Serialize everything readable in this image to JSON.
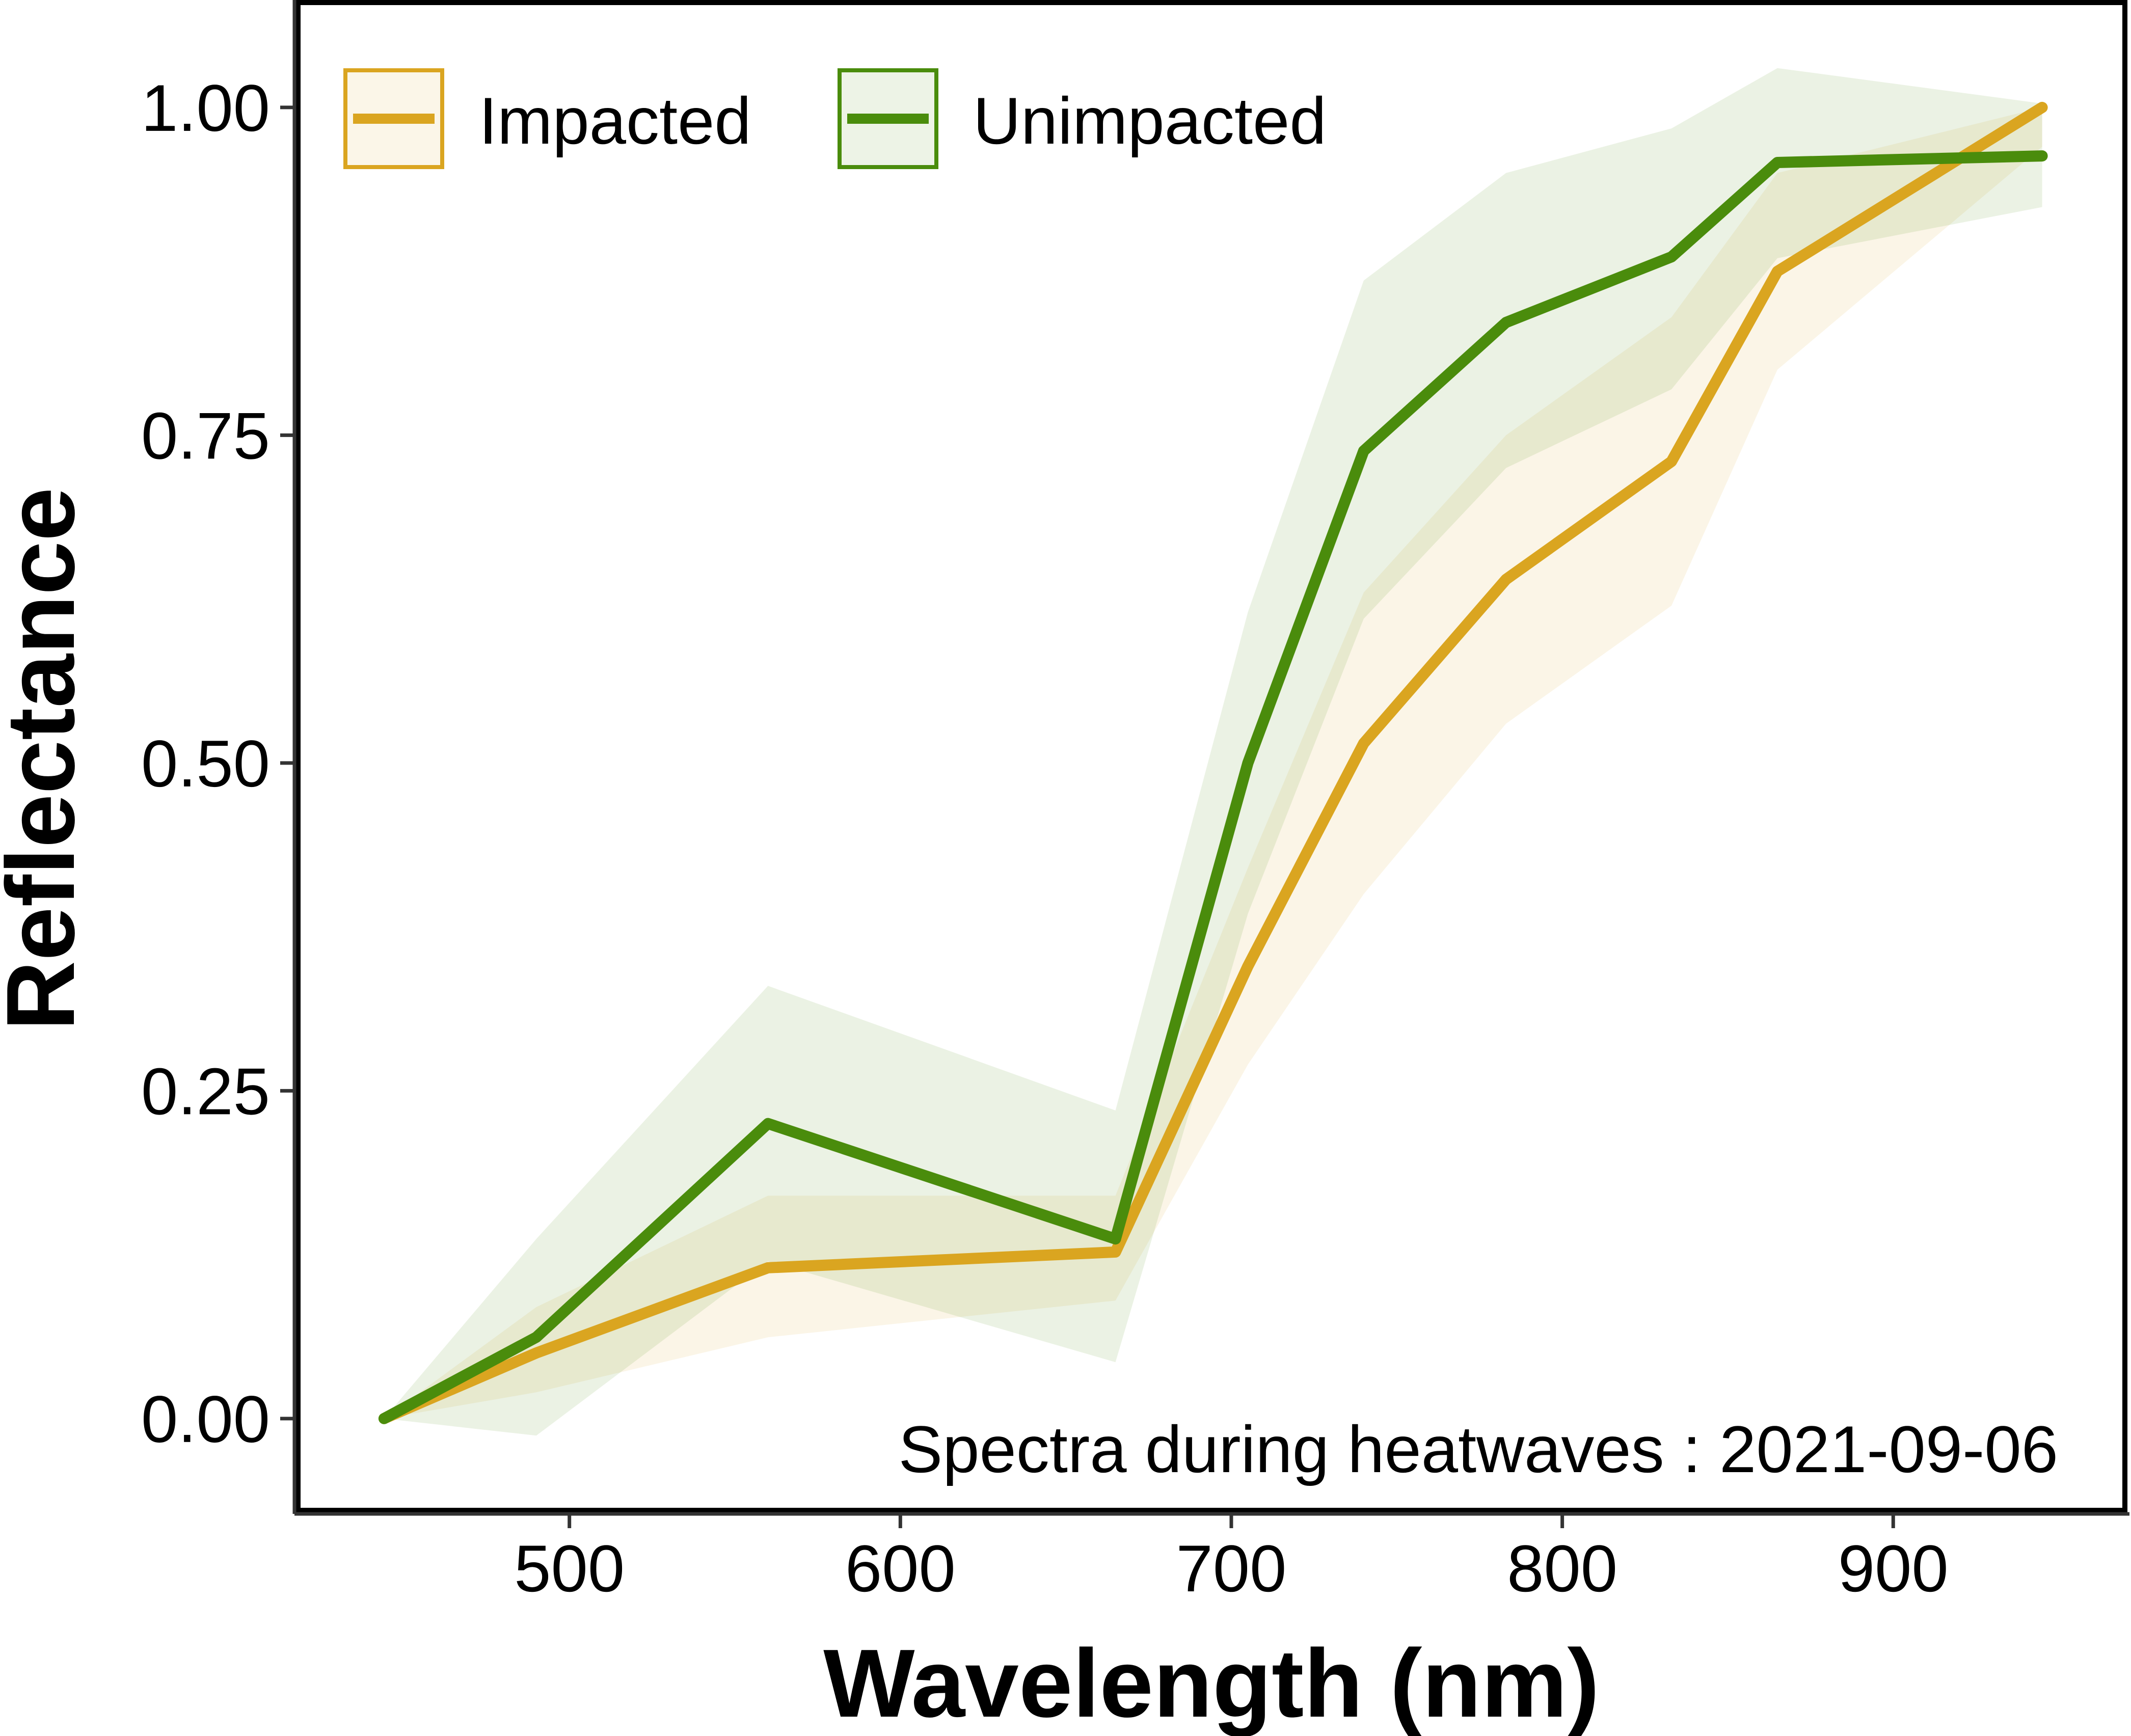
{
  "chart_data": {
    "type": "line",
    "xlabel": "Wavelength (nm)",
    "ylabel": "Reflectance",
    "annotation": "Spectra during heatwaves : 2021-09-06",
    "xlim": [
      418,
      970
    ],
    "ylim": [
      -0.07,
      1.08
    ],
    "x_ticks": [
      500,
      600,
      700,
      800,
      900
    ],
    "x_tick_labels": [
      "500",
      "600",
      "700",
      "800",
      "900"
    ],
    "y_ticks": [
      0.0,
      0.25,
      0.5,
      0.75,
      1.0
    ],
    "y_tick_labels": [
      "0.00",
      "0.25",
      "0.50",
      "0.75",
      "1.00"
    ],
    "grid": false,
    "legend_position": "top-left",
    "x": [
      444,
      490,
      560,
      665,
      705,
      740,
      783,
      833,
      865,
      945
    ],
    "series": [
      {
        "name": "Impacted",
        "color": "#DAA520",
        "values": [
          0.0,
          0.05,
          0.115,
          0.127,
          0.345,
          0.515,
          0.64,
          0.73,
          0.875,
          1.0
        ],
        "lower": [
          0.0,
          0.02,
          0.062,
          0.09,
          0.27,
          0.4,
          0.53,
          0.62,
          0.8,
          0.97
        ],
        "upper": [
          0.0,
          0.085,
          0.17,
          0.17,
          0.42,
          0.63,
          0.75,
          0.84,
          0.95,
          1.0
        ]
      },
      {
        "name": "Unimpacted",
        "color": "#4A8C0C",
        "values": [
          0.0,
          0.062,
          0.225,
          0.137,
          0.5,
          0.738,
          0.836,
          0.886,
          0.958,
          0.963
        ],
        "lower": [
          0.0,
          -0.013,
          0.12,
          0.043,
          0.385,
          0.61,
          0.725,
          0.785,
          0.885,
          0.924
        ],
        "upper": [
          0.0,
          0.137,
          0.33,
          0.235,
          0.615,
          0.868,
          0.95,
          0.984,
          1.03,
          1.003
        ]
      }
    ]
  }
}
